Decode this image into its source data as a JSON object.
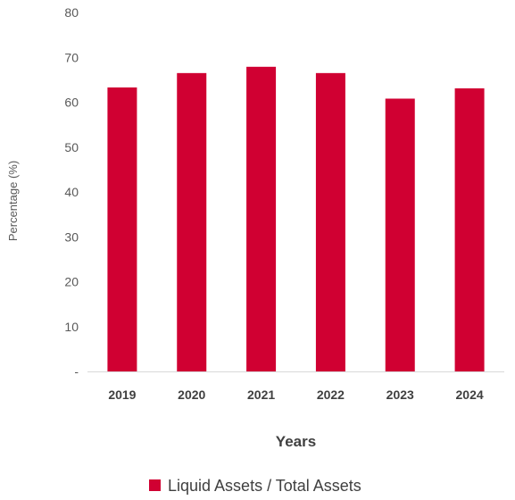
{
  "chart_data": {
    "type": "bar",
    "categories": [
      "2019",
      "2020",
      "2021",
      "2022",
      "2023",
      "2024"
    ],
    "series": [
      {
        "name": "Liquid Assets / Total Assets",
        "color": "#d00032",
        "values": [
          63.3,
          66.5,
          67.9,
          66.5,
          60.8,
          63.1
        ]
      }
    ],
    "xlabel": "Years",
    "ylabel": "Percentage (%)",
    "ylim": [
      0,
      80
    ],
    "yticks": [
      0,
      10,
      20,
      30,
      40,
      50,
      60,
      70,
      80
    ],
    "ytick_labels": [
      "-",
      "10",
      "20",
      "30",
      "40",
      "50",
      "60",
      "70",
      "80"
    ],
    "grid": false,
    "legend_position": "bottom"
  }
}
